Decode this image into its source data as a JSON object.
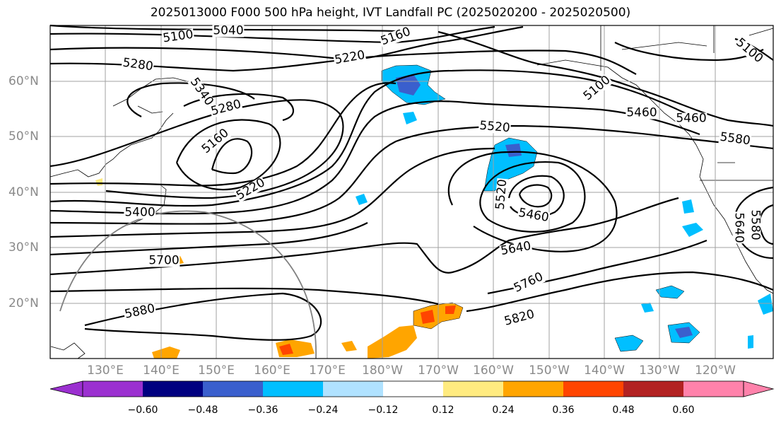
{
  "title": "2025013000 F000 500 hPa height, IVT Landfall PC (2025020200 - 2025020500)",
  "lon_labels": [
    "130°E",
    "140°E",
    "150°E",
    "160°E",
    "170°E",
    "180°W",
    "170°W",
    "160°W",
    "150°W",
    "140°W",
    "130°W",
    "120°W"
  ],
  "lat_labels": [
    "60°N",
    "50°N",
    "40°N",
    "30°N",
    "20°N"
  ],
  "contour_labels": [
    "5100",
    "5040",
    "5160",
    "5220",
    "5280",
    "5340",
    "5280",
    "5160",
    "5220",
    "5400",
    "5700",
    "5880",
    "5100",
    "5520",
    "5460",
    "5580",
    "5520",
    "5460",
    "5640",
    "5760",
    "5820",
    "5640",
    "5100",
    "5460",
    "5580"
  ],
  "colorbar": {
    "ticks": [
      "−0.60",
      "−0.48",
      "−0.36",
      "−0.24",
      "−0.12",
      "0.12",
      "0.24",
      "0.36",
      "0.48",
      "0.60"
    ],
    "colors": [
      "#9b30d0",
      "#000080",
      "#3a5fcd",
      "#00bfff",
      "#b0e2ff",
      "#ffffff",
      "#ffeb80",
      "#ffa500",
      "#ff4500",
      "#b22222",
      "#ff82ab"
    ]
  }
}
